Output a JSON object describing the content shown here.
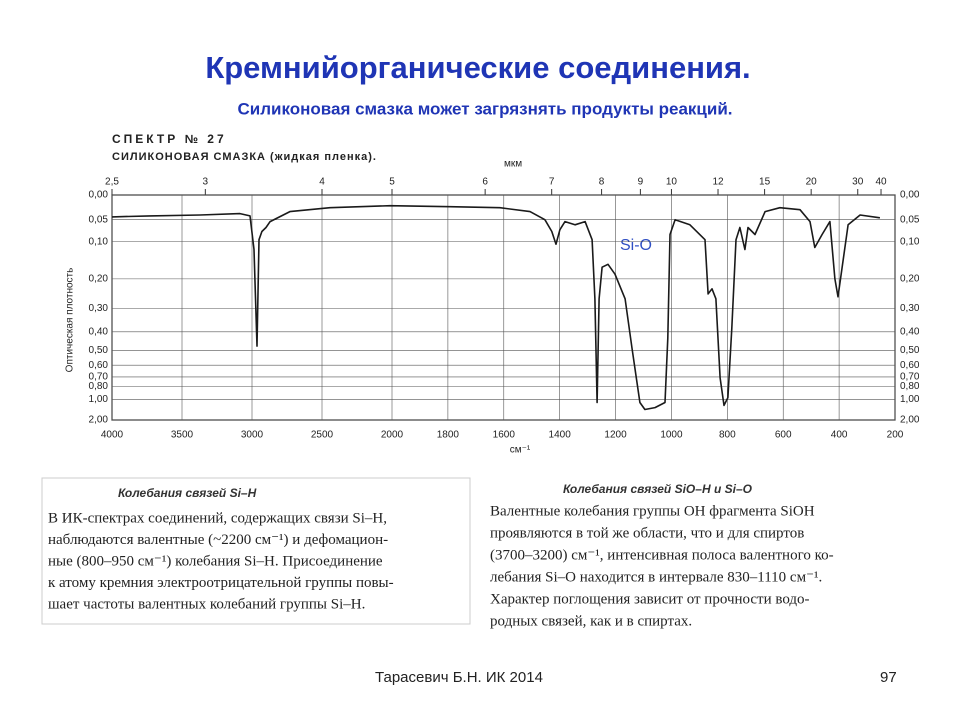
{
  "slide": {
    "title": "Кремнийорганические соединения.",
    "subtitle": "Силиконовая смазка может загрязнять продукты реакций.",
    "left_box": {
      "heading": "Колебания связей Si–H",
      "lines": [
        "В ИК-спектрах соединений, содержащих связи Si–H,",
        "наблюдаются валентные (~2200 см⁻¹) и дефомацион-",
        "ные (800–950 см⁻¹) колебания Si–H. Присоединение",
        "к атому кремния электроотрицательной группы повы-",
        "шает частоты валентных колебаний группы Si–H."
      ]
    },
    "right_box": {
      "heading": "Колебания связей SiO–H и Si–O",
      "lines": [
        "Валентные колебания группы OH фрагмента SiOH",
        "проявляются в той же области, что и для спиртов",
        "(3700–3200) см⁻¹, интенсивная полоса валентного ко-",
        "лебания Si–O находится в интервале 830–1110 см⁻¹.",
        "Характер поглощения зависит от прочности водо-",
        "родных связей, как и в спиртах."
      ]
    },
    "footer": "Тарасевич Б.Н.  ИК 2014",
    "page_number": "97"
  },
  "chart_data": {
    "type": "line",
    "title": "СПЕКТР № 27",
    "subtitle": "СИЛИКОНОВАЯ СМАЗКА (жидкая пленка).",
    "xlabel": "см⁻¹",
    "x2label": "мкм",
    "ylabel": "Оптическая плотность",
    "annotation": "Si-O",
    "color": "#1a1a1a",
    "grid": true,
    "yscale": "transmittance",
    "xlim": [
      4000,
      200
    ],
    "xticks": [
      4000,
      3500,
      3000,
      2500,
      2000,
      1800,
      1600,
      1400,
      1200,
      1000,
      800,
      600,
      400,
      200
    ],
    "x2ticks": [
      {
        "value": 2.5,
        "label": "2,5"
      },
      3,
      4,
      5,
      6,
      7,
      8,
      9,
      10,
      12,
      15,
      20,
      30,
      40
    ],
    "ylim": [
      0,
      2
    ],
    "yticks": [
      {
        "value": 0,
        "label": "0,00"
      },
      {
        "value": 0.05,
        "label": "0,05"
      },
      {
        "value": 0.1,
        "label": "0,10"
      },
      {
        "value": 0.2,
        "label": "0,20"
      },
      {
        "value": 0.3,
        "label": "0,30"
      },
      {
        "value": 0.4,
        "label": "0,40"
      },
      {
        "value": 0.5,
        "label": "0,50"
      },
      {
        "value": 0.6,
        "label": "0,60"
      },
      {
        "value": 0.7,
        "label": "0,70"
      },
      {
        "value": 0.8,
        "label": "0,80"
      },
      {
        "value": 1,
        "label": "1,00"
      },
      {
        "value": 2,
        "label": "2,00"
      }
    ],
    "x": [
      4000,
      3729,
      3371,
      3086,
      3014,
      2986,
      2964,
      2950,
      2929,
      2900,
      2871,
      2729,
      2443,
      2014,
      1792,
      1614,
      1506,
      1453,
      1428,
      1413,
      1399,
      1381,
      1345,
      1309,
      1284,
      1274,
      1266,
      1259,
      1248,
      1227,
      1202,
      1166,
      1141,
      1113,
      1095,
      1059,
      1023,
      1013,
      1005,
      987,
      934,
      880,
      869,
      855,
      841,
      826,
      812,
      798,
      784,
      769,
      755,
      737,
      726,
      701,
      665,
      612,
      540,
      504,
      487,
      461,
      433,
      415,
      404,
      390,
      368,
      325,
      254
    ],
    "values": [
      0.044,
      0.042,
      0.04,
      0.037,
      0.042,
      0.119,
      0.475,
      0.095,
      0.076,
      0.067,
      0.054,
      0.033,
      0.025,
      0.021,
      0.023,
      0.025,
      0.033,
      0.05,
      0.076,
      0.106,
      0.072,
      0.054,
      0.061,
      0.054,
      0.095,
      0.265,
      1.06,
      0.265,
      0.166,
      0.158,
      0.186,
      0.265,
      0.487,
      1.06,
      1.25,
      1.19,
      1.06,
      0.432,
      0.083,
      0.05,
      0.061,
      0.095,
      0.248,
      0.231,
      0.265,
      0.708,
      1.13,
      0.964,
      0.384,
      0.095,
      0.067,
      0.119,
      0.067,
      0.083,
      0.033,
      0.025,
      0.029,
      0.054,
      0.114,
      0.083,
      0.054,
      0.2,
      0.258,
      0.171,
      0.061,
      0.04,
      0.046
    ]
  }
}
